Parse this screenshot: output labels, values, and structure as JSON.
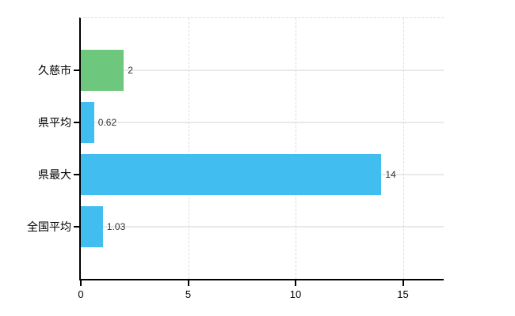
{
  "chart_data": {
    "type": "bar",
    "orientation": "horizontal",
    "title": "",
    "xlabel": "",
    "ylabel": "",
    "categories": [
      "久慈市",
      "県平均",
      "県最大",
      "全国平均"
    ],
    "values": [
      2,
      0.62,
      14,
      1.03
    ],
    "value_labels": [
      "2",
      "0.62",
      "14",
      "1.03"
    ],
    "bar_colors": [
      "#6dc87e",
      "#41bdf0",
      "#41bdf0",
      "#41bdf0"
    ],
    "x_ticks": [
      0,
      5,
      10,
      15
    ],
    "xlim": [
      0,
      16.9
    ],
    "grid": "on",
    "legend": "none",
    "colors": {
      "background": "#ffffff",
      "axis": "#000000",
      "vertical_gridline": "#dcdcdc",
      "horizontal_gridline": "#cfd6cf",
      "value_label_text": "#333333",
      "category_label_text": "#000000"
    }
  }
}
